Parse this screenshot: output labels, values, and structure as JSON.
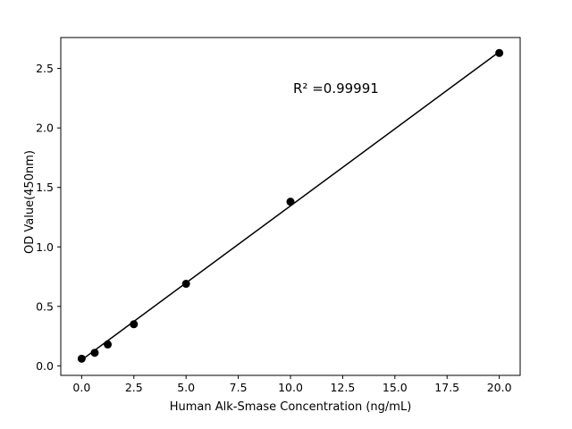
{
  "chart_data": {
    "type": "scatter",
    "title": "",
    "xlabel": "Human Alk-Smase Concentration (ng/mL)",
    "ylabel": "OD Value(450nm)",
    "annotation": "R² =0.99991",
    "x": [
      0,
      0.625,
      1.25,
      2.5,
      5,
      10,
      20
    ],
    "y": [
      0.06,
      0.11,
      0.18,
      0.35,
      0.69,
      1.38,
      2.63
    ],
    "trendline": {
      "x": [
        0,
        20
      ],
      "y": [
        0.05,
        2.64
      ]
    },
    "xticks": [
      0.0,
      2.5,
      5.0,
      7.5,
      10.0,
      12.5,
      15.0,
      17.5,
      20.0
    ],
    "yticks": [
      0.0,
      0.5,
      1.0,
      1.5,
      2.0,
      2.5
    ],
    "xlim": [
      -1,
      21
    ],
    "ylim": [
      -0.08,
      2.76
    ],
    "grid": false,
    "legend": null,
    "marker_color": "#000000",
    "line_color": "#000000",
    "axis_color": "#000000",
    "marker_radius": 4.5,
    "line_width": 1.5
  }
}
